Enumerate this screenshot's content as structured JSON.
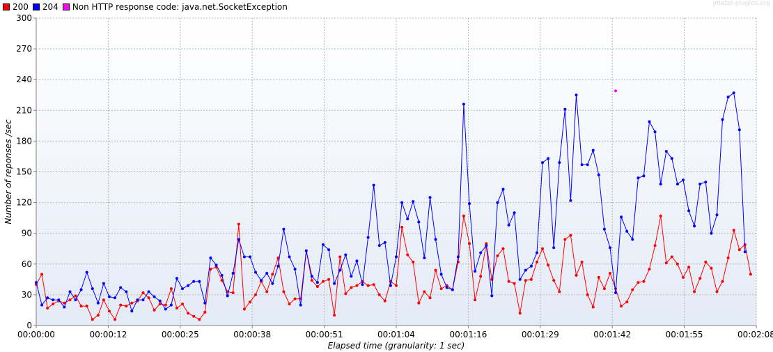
{
  "watermark": "jmeter-plugins.org",
  "chart_data": {
    "type": "line",
    "xlabel": "Elapsed time (granularity: 1 sec)",
    "ylabel": "Number of reponses /sec",
    "xlim": [
      0,
      128
    ],
    "ylim": [
      0,
      300
    ],
    "y_ticks": [
      0,
      30,
      60,
      90,
      120,
      150,
      180,
      210,
      240,
      270,
      300
    ],
    "x_ticks": [
      {
        "x": 0,
        "label": "00:00:00"
      },
      {
        "x": 12.8,
        "label": "00:00:12"
      },
      {
        "x": 25.6,
        "label": "00:00:25"
      },
      {
        "x": 38.4,
        "label": "00:00:38"
      },
      {
        "x": 51.2,
        "label": "00:00:51"
      },
      {
        "x": 64,
        "label": "00:01:04"
      },
      {
        "x": 76.8,
        "label": "00:01:16"
      },
      {
        "x": 89.6,
        "label": "00:01:29"
      },
      {
        "x": 102.4,
        "label": "00:01:42"
      },
      {
        "x": 115.2,
        "label": "00:01:55"
      },
      {
        "x": 128,
        "label": "00:02:08"
      }
    ],
    "grid": true,
    "legend_position": "top-left",
    "series": [
      {
        "name": "200",
        "color": "#ff0000",
        "points": [
          [
            0,
            40
          ],
          [
            1,
            50
          ],
          [
            2,
            17
          ],
          [
            3,
            21
          ],
          [
            4,
            24
          ],
          [
            5,
            22
          ],
          [
            6,
            25
          ],
          [
            7,
            29
          ],
          [
            8,
            19
          ],
          [
            9,
            19
          ],
          [
            10,
            6
          ],
          [
            11,
            10
          ],
          [
            12,
            25
          ],
          [
            13,
            14
          ],
          [
            14,
            6
          ],
          [
            15,
            20
          ],
          [
            16,
            19
          ],
          [
            17,
            22
          ],
          [
            18,
            24
          ],
          [
            19,
            32
          ],
          [
            20,
            27
          ],
          [
            21,
            15
          ],
          [
            22,
            21
          ],
          [
            23,
            20
          ],
          [
            24,
            36
          ],
          [
            25,
            17
          ],
          [
            26,
            21
          ],
          [
            27,
            12
          ],
          [
            28,
            9
          ],
          [
            29,
            6
          ],
          [
            30,
            13
          ],
          [
            31,
            55
          ],
          [
            32,
            57
          ],
          [
            33,
            44
          ],
          [
            34,
            33
          ],
          [
            35,
            32
          ],
          [
            36,
            99
          ],
          [
            37,
            16
          ],
          [
            38,
            23
          ],
          [
            39,
            30
          ],
          [
            40,
            43
          ],
          [
            41,
            33
          ],
          [
            42,
            50
          ],
          [
            43,
            66
          ],
          [
            44,
            33
          ],
          [
            45,
            21
          ],
          [
            46,
            26
          ],
          [
            47,
            26
          ],
          [
            48,
            73
          ],
          [
            49,
            44
          ],
          [
            50,
            38
          ],
          [
            51,
            43
          ],
          [
            52,
            45
          ],
          [
            53,
            10
          ],
          [
            54,
            67
          ],
          [
            55,
            31
          ],
          [
            56,
            37
          ],
          [
            57,
            39
          ],
          [
            58,
            43
          ],
          [
            59,
            39
          ],
          [
            60,
            40
          ],
          [
            61,
            30
          ],
          [
            62,
            24
          ],
          [
            63,
            43
          ],
          [
            64,
            39
          ],
          [
            65,
            96
          ],
          [
            66,
            69
          ],
          [
            67,
            62
          ],
          [
            68,
            22
          ],
          [
            69,
            33
          ],
          [
            70,
            27
          ],
          [
            71,
            54
          ],
          [
            72,
            36
          ],
          [
            73,
            39
          ],
          [
            74,
            35
          ],
          [
            75,
            62
          ],
          [
            76,
            107
          ],
          [
            77,
            80
          ],
          [
            78,
            25
          ],
          [
            79,
            48
          ],
          [
            80,
            80
          ],
          [
            81,
            45
          ],
          [
            82,
            68
          ],
          [
            83,
            75
          ],
          [
            84,
            43
          ],
          [
            85,
            41
          ],
          [
            86,
            12
          ],
          [
            87,
            44
          ],
          [
            88,
            45
          ],
          [
            89,
            62
          ],
          [
            90,
            75
          ],
          [
            91,
            59
          ],
          [
            92,
            44
          ],
          [
            93,
            33
          ],
          [
            94,
            84
          ],
          [
            95,
            88
          ],
          [
            96,
            49
          ],
          [
            97,
            62
          ],
          [
            98,
            30
          ],
          [
            99,
            18
          ],
          [
            100,
            47
          ],
          [
            101,
            36
          ],
          [
            102,
            51
          ],
          [
            103,
            36
          ],
          [
            104,
            19
          ],
          [
            105,
            23
          ],
          [
            106,
            35
          ],
          [
            107,
            42
          ],
          [
            108,
            43
          ],
          [
            109,
            55
          ],
          [
            110,
            78
          ],
          [
            111,
            107
          ],
          [
            112,
            61
          ],
          [
            113,
            67
          ],
          [
            114,
            60
          ],
          [
            115,
            47
          ],
          [
            116,
            57
          ],
          [
            117,
            33
          ],
          [
            118,
            46
          ],
          [
            119,
            62
          ],
          [
            120,
            56
          ],
          [
            121,
            33
          ],
          [
            122,
            43
          ],
          [
            123,
            66
          ],
          [
            124,
            93
          ],
          [
            125,
            74
          ],
          [
            126,
            79
          ],
          [
            127,
            50
          ]
        ]
      },
      {
        "name": "204",
        "color": "#0000ff",
        "points": [
          [
            0,
            42
          ],
          [
            1,
            20
          ],
          [
            2,
            27
          ],
          [
            3,
            25
          ],
          [
            4,
            25
          ],
          [
            5,
            18
          ],
          [
            6,
            33
          ],
          [
            7,
            25
          ],
          [
            8,
            35
          ],
          [
            9,
            52
          ],
          [
            10,
            36
          ],
          [
            11,
            22
          ],
          [
            12,
            41
          ],
          [
            13,
            28
          ],
          [
            14,
            27
          ],
          [
            15,
            37
          ],
          [
            16,
            33
          ],
          [
            17,
            14
          ],
          [
            18,
            25
          ],
          [
            19,
            25
          ],
          [
            20,
            33
          ],
          [
            21,
            28
          ],
          [
            22,
            24
          ],
          [
            23,
            16
          ],
          [
            24,
            20
          ],
          [
            25,
            46
          ],
          [
            26,
            36
          ],
          [
            27,
            39
          ],
          [
            28,
            43
          ],
          [
            29,
            43
          ],
          [
            30,
            22
          ],
          [
            31,
            66
          ],
          [
            32,
            59
          ],
          [
            33,
            49
          ],
          [
            34,
            29
          ],
          [
            35,
            51
          ],
          [
            36,
            84
          ],
          [
            37,
            67
          ],
          [
            38,
            67
          ],
          [
            39,
            52
          ],
          [
            40,
            44
          ],
          [
            41,
            51
          ],
          [
            42,
            41
          ],
          [
            43,
            58
          ],
          [
            44,
            94
          ],
          [
            45,
            67
          ],
          [
            46,
            55
          ],
          [
            47,
            20
          ],
          [
            48,
            73
          ],
          [
            49,
            48
          ],
          [
            50,
            42
          ],
          [
            51,
            79
          ],
          [
            52,
            74
          ],
          [
            53,
            41
          ],
          [
            54,
            54
          ],
          [
            55,
            69
          ],
          [
            56,
            48
          ],
          [
            57,
            63
          ],
          [
            58,
            40
          ],
          [
            59,
            86
          ],
          [
            60,
            137
          ],
          [
            61,
            78
          ],
          [
            62,
            81
          ],
          [
            63,
            39
          ],
          [
            64,
            67
          ],
          [
            65,
            120
          ],
          [
            66,
            104
          ],
          [
            67,
            121
          ],
          [
            68,
            101
          ],
          [
            69,
            66
          ],
          [
            70,
            125
          ],
          [
            71,
            84
          ],
          [
            72,
            50
          ],
          [
            73,
            37
          ],
          [
            74,
            35
          ],
          [
            75,
            67
          ],
          [
            76,
            216
          ],
          [
            77,
            119
          ],
          [
            78,
            53
          ],
          [
            79,
            71
          ],
          [
            80,
            78
          ],
          [
            81,
            29
          ],
          [
            82,
            120
          ],
          [
            83,
            133
          ],
          [
            84,
            98
          ],
          [
            85,
            110
          ],
          [
            86,
            45
          ],
          [
            87,
            54
          ],
          [
            88,
            58
          ],
          [
            89,
            71
          ],
          [
            90,
            159
          ],
          [
            91,
            163
          ],
          [
            92,
            76
          ],
          [
            93,
            159
          ],
          [
            94,
            211
          ],
          [
            95,
            122
          ],
          [
            96,
            225
          ],
          [
            97,
            157
          ],
          [
            98,
            157
          ],
          [
            99,
            171
          ],
          [
            100,
            147
          ],
          [
            101,
            94
          ],
          [
            102,
            76
          ],
          [
            103,
            32
          ],
          [
            104,
            106
          ],
          [
            105,
            92
          ],
          [
            106,
            84
          ],
          [
            107,
            144
          ],
          [
            108,
            146
          ],
          [
            109,
            199
          ],
          [
            110,
            189
          ],
          [
            111,
            138
          ],
          [
            112,
            170
          ],
          [
            113,
            163
          ],
          [
            114,
            138
          ],
          [
            115,
            142
          ],
          [
            116,
            112
          ],
          [
            117,
            97
          ],
          [
            118,
            138
          ],
          [
            119,
            140
          ],
          [
            120,
            90
          ],
          [
            121,
            108
          ],
          [
            122,
            201
          ],
          [
            123,
            223
          ],
          [
            124,
            227
          ],
          [
            125,
            191
          ],
          [
            126,
            72
          ]
        ]
      },
      {
        "name": "Non HTTP response code: java.net.SocketException",
        "color": "#ff00ff",
        "points": [
          [
            103,
            229
          ]
        ]
      }
    ]
  }
}
